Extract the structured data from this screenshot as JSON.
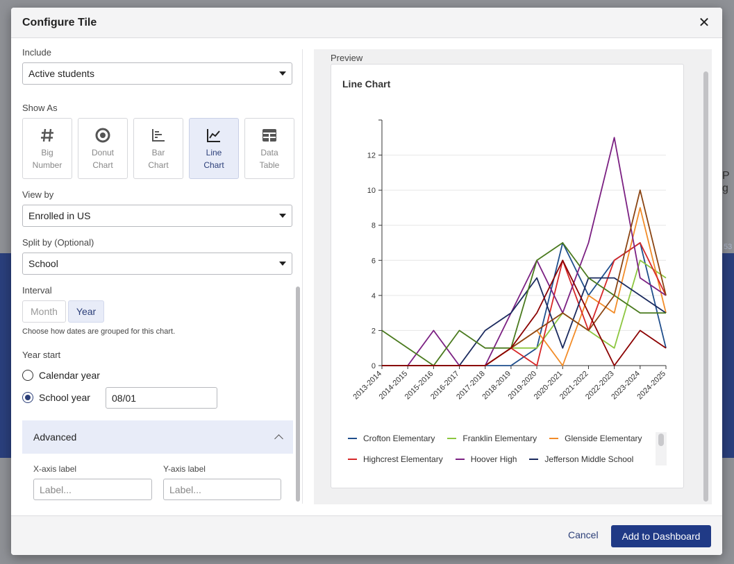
{
  "background": {
    "fragment_right": "P g",
    "fragment_right2": "53"
  },
  "modal": {
    "title": "Configure Tile"
  },
  "form": {
    "include": {
      "label": "Include",
      "value": "Active students"
    },
    "show_as": {
      "label": "Show As",
      "options": [
        {
          "line1": "Big",
          "line2": "Number",
          "icon": "hash-icon"
        },
        {
          "line1": "Donut",
          "line2": "Chart",
          "icon": "donut-icon"
        },
        {
          "line1": "Bar",
          "line2": "Chart",
          "icon": "bar-chart-icon"
        },
        {
          "line1": "Line",
          "line2": "Chart",
          "icon": "line-chart-icon"
        },
        {
          "line1": "Data",
          "line2": "Table",
          "icon": "table-icon"
        }
      ],
      "selected": "Line Chart"
    },
    "view_by": {
      "label": "View by",
      "value": "Enrolled in US"
    },
    "split_by": {
      "label": "Split by (Optional)",
      "value": "School"
    },
    "interval": {
      "label": "Interval",
      "options": [
        "Month",
        "Year"
      ],
      "selected": "Year",
      "help": "Choose how dates are grouped for this chart."
    },
    "year_start": {
      "label": "Year start",
      "calendar": "Calendar year",
      "school": "School year",
      "school_date": "08/01",
      "selected": "School year"
    },
    "advanced": {
      "label": "Advanced",
      "x_label": "X-axis label",
      "x_placeholder": "Label...",
      "y_label": "Y-axis label",
      "y_placeholder": "Label..."
    }
  },
  "preview": {
    "label": "Preview",
    "card_title": "Line Chart"
  },
  "chart_data": {
    "type": "line",
    "x": [
      "2013-2014",
      "2014-2015",
      "2015-2016",
      "2016-2017",
      "2017-2018",
      "2018-2019",
      "2019-2020",
      "2020-2021",
      "2021-2022",
      "2022-2023",
      "2023-2024",
      "2024-2025"
    ],
    "ylim": [
      0,
      14
    ],
    "yticks": [
      "0",
      "2",
      "4",
      "6",
      "8",
      "10",
      "12"
    ],
    "grid": true,
    "legend": "bottom",
    "series": [
      {
        "name": "Crofton Elementary",
        "color": "#1f4e8c",
        "values": [
          0,
          0,
          0,
          0,
          0,
          0,
          1,
          7,
          4,
          6,
          7,
          1
        ]
      },
      {
        "name": "Franklin Elementary",
        "color": "#8cc63f",
        "values": [
          0,
          0,
          0,
          0,
          0,
          1,
          1,
          3,
          2,
          1,
          6,
          5
        ]
      },
      {
        "name": "Glenside Elementary",
        "color": "#f28c28",
        "values": [
          0,
          0,
          0,
          0,
          0,
          1,
          2,
          0,
          4,
          3,
          9,
          3
        ]
      },
      {
        "name": "Highcrest Elementary",
        "color": "#d62728",
        "values": [
          0,
          0,
          0,
          0,
          0,
          1,
          0,
          6,
          2,
          6,
          7,
          4
        ]
      },
      {
        "name": "Hoover High",
        "color": "#7b2082",
        "values": [
          0,
          0,
          2,
          0,
          0,
          3,
          6,
          3,
          7,
          13,
          5,
          4
        ]
      },
      {
        "name": "Jefferson Middle School",
        "color": "#1a2a5e",
        "values": [
          0,
          0,
          0,
          0,
          2,
          3,
          5,
          1,
          5,
          5,
          4,
          3
        ]
      },
      {
        "name": "",
        "color": "#4a7a1e",
        "values": [
          2,
          1,
          0,
          2,
          1,
          1,
          6,
          7,
          5,
          4,
          3,
          3
        ]
      },
      {
        "name": "",
        "color": "#8b4513",
        "values": [
          0,
          0,
          0,
          0,
          0,
          1,
          2,
          3,
          2,
          4,
          10,
          4
        ]
      },
      {
        "name": "",
        "color": "#8b0000",
        "values": [
          0,
          0,
          0,
          0,
          0,
          1,
          3,
          6,
          3,
          0,
          2,
          1
        ]
      }
    ]
  },
  "footer": {
    "cancel": "Cancel",
    "primary": "Add to Dashboard"
  }
}
